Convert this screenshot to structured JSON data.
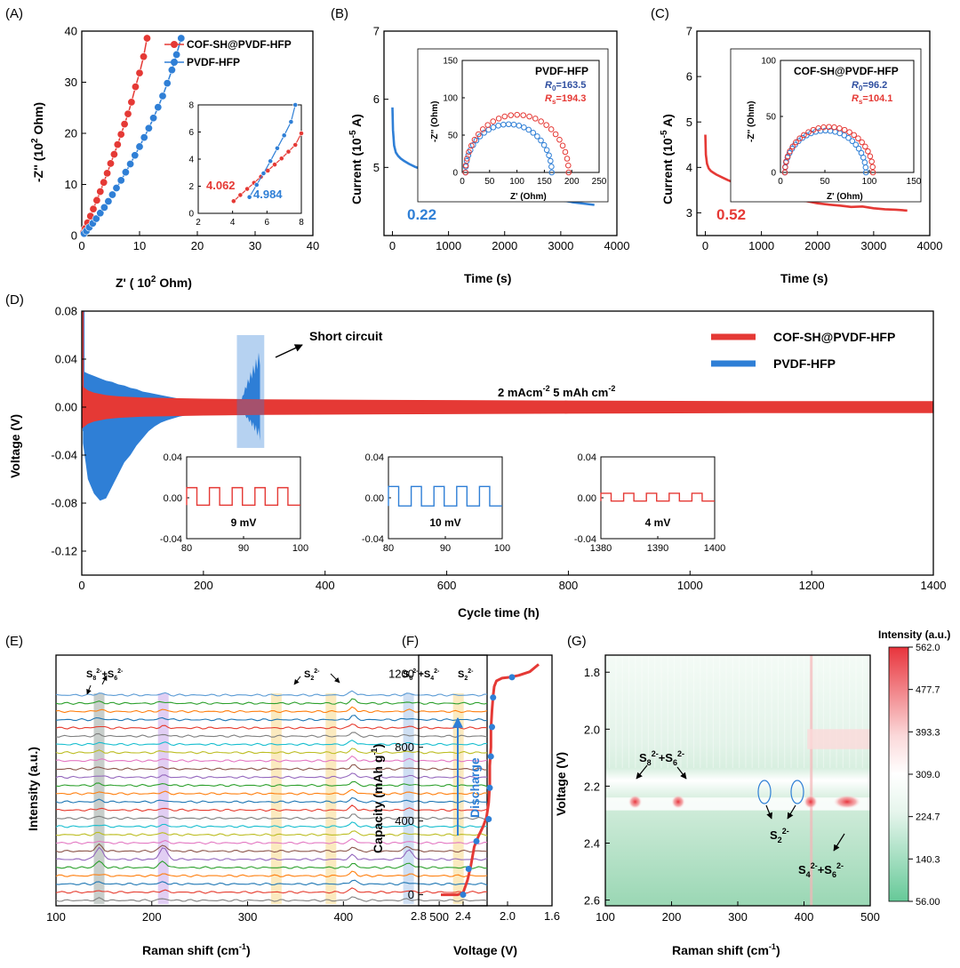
{
  "colors": {
    "red": "#e53935",
    "blue": "#2f7fd6",
    "hm_low": "#66c998",
    "hm_mid": "#ffffff",
    "hm_high": "#e8343c"
  },
  "chart_data": [
    {
      "id": "A",
      "panel_label": "(A)",
      "type": "scatter",
      "title": "",
      "xlabel_main": "Z' ( 10",
      "xlabel_sup": "2",
      "xlabel_end": " Ohm)",
      "ylabel_main": "-Z'' (10",
      "ylabel_sup": "2",
      "ylabel_end": " Ohm)",
      "xlim": [
        0,
        40
      ],
      "ylim": [
        0,
        40
      ],
      "xticks": [
        0,
        10,
        20,
        30,
        40
      ],
      "yticks": [
        0,
        10,
        20,
        30,
        40
      ],
      "legend": [
        "COF-SH@PVDF-HFP",
        "PVDF-HFP"
      ],
      "series": [
        {
          "name": "COF-SH@PVDF-HFP",
          "color": "red",
          "x": [
            0.3,
            0.6,
            1.0,
            1.5,
            2.0,
            2.6,
            3.2,
            3.8,
            4.4,
            5.0,
            5.6,
            6.2,
            6.8,
            7.4,
            8.0,
            8.6,
            9.3,
            10.0,
            10.7,
            11.3
          ],
          "y": [
            0.6,
            1.4,
            2.5,
            3.8,
            5.2,
            6.9,
            8.6,
            10.4,
            12.2,
            14.1,
            15.9,
            17.8,
            19.8,
            21.8,
            23.8,
            26.1,
            29.1,
            31.8,
            35.0,
            38.6
          ]
        },
        {
          "name": "PVDF-HFP",
          "color": "blue",
          "x": [
            0.4,
            0.8,
            1.3,
            1.9,
            2.5,
            3.2,
            3.9,
            4.6,
            5.3,
            6.0,
            6.8,
            7.6,
            8.4,
            9.2,
            10.0,
            10.8,
            11.6,
            12.4,
            13.2,
            14.0,
            14.8,
            15.6,
            16.4,
            17.2
          ],
          "y": [
            0.4,
            0.9,
            1.6,
            2.4,
            3.3,
            4.4,
            5.5,
            6.7,
            8.0,
            9.3,
            10.8,
            12.4,
            14.0,
            15.7,
            17.4,
            19.2,
            21.0,
            23.0,
            25.1,
            27.3,
            29.8,
            32.4,
            35.4,
            38.6
          ]
        }
      ],
      "inset": {
        "xlim": [
          2,
          8
        ],
        "ylim": [
          0,
          8
        ],
        "xticks": [
          2,
          4,
          6,
          8
        ],
        "yticks": [
          0,
          2,
          4,
          6,
          8
        ],
        "annotations": [
          "4.062",
          "4.984"
        ],
        "series": [
          {
            "name": "COF-SH@PVDF-HFP",
            "color": "red",
            "x": [
              4.06,
              4.45,
              4.85,
              5.25,
              5.65,
              6.05,
              6.45,
              6.85,
              7.25,
              7.65,
              8.0
            ],
            "y": [
              0.9,
              1.35,
              1.8,
              2.25,
              2.7,
              3.15,
              3.6,
              4.05,
              4.55,
              5.05,
              5.9
            ]
          },
          {
            "name": "PVDF-HFP",
            "color": "blue",
            "x": [
              4.98,
              5.4,
              5.8,
              6.2,
              6.6,
              7.0,
              7.4,
              7.65
            ],
            "y": [
              1.2,
              2.1,
              2.95,
              3.85,
              4.8,
              5.75,
              6.75,
              8.0
            ]
          }
        ]
      }
    },
    {
      "id": "B",
      "panel_label": "(B)",
      "type": "line",
      "xlabel": "Time (s)",
      "ylabel_main": "Current  (10",
      "ylabel_sup": "-5",
      "ylabel_end": " A)",
      "xlim": [
        -150,
        4000
      ],
      "ylim": [
        4,
        7
      ],
      "xticks": [
        0,
        1000,
        2000,
        3000,
        4000
      ],
      "yticks": [
        5,
        6,
        7
      ],
      "annotation": "0.22",
      "series": [
        {
          "name": "PVDF-HFP",
          "color": "blue",
          "x": [
            0,
            10,
            30,
            60,
            100,
            150,
            200,
            300,
            400,
            600,
            800,
            1000,
            1200,
            1400,
            1600,
            1800,
            2000,
            2200,
            2400,
            2600,
            2800,
            3000,
            3200,
            3400,
            3600
          ],
          "y": [
            5.88,
            5.55,
            5.32,
            5.22,
            5.17,
            5.13,
            5.1,
            5.05,
            5.01,
            4.95,
            4.9,
            4.85,
            4.81,
            4.77,
            4.73,
            4.7,
            4.67,
            4.63,
            4.6,
            4.59,
            4.55,
            4.52,
            4.49,
            4.47,
            4.45
          ]
        }
      ],
      "inset": {
        "title": "PVDF-HFP",
        "xlabel": "Z' (Ohm)",
        "ylabel": "-Z'' (Ohm)",
        "xlim": [
          0,
          250
        ],
        "ylim": [
          0,
          150
        ],
        "xticks": [
          0,
          50,
          100,
          150,
          200,
          250
        ],
        "yticks": [
          0,
          50,
          100,
          150
        ],
        "r0_label": "R",
        "r0_sub": "0",
        "r0_value": "=163.5",
        "rs_label": "R",
        "rs_sub": "s",
        "rs_value": "=194.3",
        "arcs": [
          {
            "color": "blue",
            "x_start": 6,
            "x_end": 163.5
          },
          {
            "color": "red",
            "x_start": 6,
            "x_end": 194.3
          }
        ]
      }
    },
    {
      "id": "C",
      "panel_label": "(C)",
      "type": "line",
      "xlabel": "Time (s)",
      "ylabel_main": "Current  (10",
      "ylabel_sup": "-5",
      "ylabel_end": " A)",
      "xlim": [
        -150,
        4000
      ],
      "ylim": [
        2.5,
        7
      ],
      "xticks": [
        0,
        1000,
        2000,
        3000,
        4000
      ],
      "yticks": [
        3,
        4,
        5,
        6,
        7
      ],
      "annotation": "0.52",
      "series": [
        {
          "name": "COF-SH@PVDF-HFP",
          "color": "red",
          "x": [
            0,
            10,
            30,
            60,
            100,
            150,
            200,
            300,
            400,
            600,
            800,
            1000,
            1200,
            1400,
            1600,
            1800,
            2000,
            2200,
            2400,
            2600,
            2800,
            3000,
            3200,
            3400,
            3600
          ],
          "y": [
            4.72,
            4.28,
            4.08,
            3.98,
            3.92,
            3.88,
            3.84,
            3.78,
            3.72,
            3.62,
            3.54,
            3.47,
            3.4,
            3.35,
            3.3,
            3.26,
            3.21,
            3.18,
            3.16,
            3.13,
            3.14,
            3.1,
            3.08,
            3.07,
            3.05
          ]
        }
      ],
      "inset": {
        "title": "COF-SH@PVDF-HFP",
        "xlabel": "Z' (Ohm)",
        "ylabel": "-Z'' (Ohm)",
        "xlim": [
          0,
          150
        ],
        "ylim": [
          0,
          100
        ],
        "xticks": [
          0,
          50,
          100,
          150
        ],
        "yticks": [
          0,
          50,
          100
        ],
        "r0_label": "R",
        "r0_sub": "0",
        "r0_value": "=96.2",
        "rs_label": "R",
        "rs_sub": "s",
        "rs_value": "=104.1",
        "arcs": [
          {
            "color": "blue",
            "x_start": 5,
            "x_end": 96.2
          },
          {
            "color": "red",
            "x_start": 5,
            "x_end": 104.1
          }
        ]
      }
    },
    {
      "id": "D",
      "panel_label": "(D)",
      "type": "line",
      "xlabel": "Cycle time (h)",
      "ylabel": "Voltage (V)",
      "xlim": [
        0,
        1400
      ],
      "ylim": [
        -0.14,
        0.08
      ],
      "xticks": [
        0,
        200,
        400,
        600,
        800,
        1000,
        1200,
        1400
      ],
      "yticks": [
        0.08,
        0.04,
        0.0,
        -0.04,
        -0.08,
        -0.12
      ],
      "ytick_labels": [
        "0.08",
        "0.04",
        "0.00",
        "-0.04",
        "-0.08",
        "-0.12"
      ],
      "legend": [
        "COF-SH@PVDF-HFP",
        "PVDF-HFP"
      ],
      "condition_a": "2 mAcm",
      "condition_a_sup": "-2",
      "condition_b": "   5 mAh cm",
      "condition_b_sup": "-2",
      "annotation": "Short circuit",
      "pvdf_envelope": {
        "t": [
          2,
          10,
          20,
          30,
          40,
          50,
          60,
          70,
          80,
          90,
          100,
          110,
          120,
          130,
          140,
          160,
          180,
          200
        ],
        "upper": [
          0.03,
          0.028,
          0.026,
          0.024,
          0.022,
          0.021,
          0.019,
          0.018,
          0.016,
          0.015,
          0.013,
          0.012,
          0.011,
          0.01,
          0.009,
          0.007,
          0.006,
          0.005
        ],
        "lower": [
          -0.03,
          -0.06,
          -0.072,
          -0.078,
          -0.076,
          -0.066,
          -0.056,
          -0.046,
          -0.04,
          -0.032,
          -0.026,
          -0.02,
          -0.016,
          -0.013,
          -0.011,
          -0.008,
          -0.006,
          -0.005
        ]
      },
      "short_circuit": {
        "t_start": 262,
        "t_end": 293,
        "upper": 0.048,
        "lower": -0.028
      },
      "cof_envelope": {
        "t": [
          0,
          10,
          20,
          40,
          60,
          100,
          150,
          200,
          300,
          500,
          800,
          1100,
          1400
        ],
        "amp": [
          0.018,
          0.014,
          0.012,
          0.01,
          0.009,
          0.008,
          0.0075,
          0.007,
          0.0065,
          0.006,
          0.0055,
          0.005,
          0.005
        ]
      },
      "insets": [
        {
          "color": "red",
          "label": "9 mV",
          "xlim": [
            80,
            100
          ],
          "xticks": [
            80,
            90,
            100
          ],
          "ylim": [
            -0.04,
            0.04
          ],
          "yticks": [
            "0.04",
            "0.00",
            "-0.04"
          ],
          "amplitude": 0.0045
        },
        {
          "color": "blue",
          "label": "10 mV",
          "xlim": [
            80,
            100
          ],
          "xticks": [
            80,
            90,
            100
          ],
          "ylim": [
            -0.04,
            0.04
          ],
          "yticks": [
            "0.04",
            "0.00",
            "-0.04"
          ],
          "amplitude": 0.005
        },
        {
          "color": "red",
          "label": "4 mV",
          "xlim": [
            1380,
            1400
          ],
          "xticks": [
            1380,
            1390,
            1400
          ],
          "ylim": [
            -0.04,
            0.04
          ],
          "yticks": [
            "0.04",
            "0.00",
            "-0.04"
          ],
          "amplitude": 0.002
        }
      ]
    },
    {
      "id": "E",
      "panel_label": "(E)",
      "type": "line",
      "xlabel": "Raman shift (cm",
      "xlabel_sup": "-1",
      "xlabel_end": ")",
      "ylabel": "Intensity (a.u.)",
      "xlim": [
        100,
        550
      ],
      "xticks": [
        100,
        200,
        300,
        400,
        500
      ],
      "highlight_bands": [
        145,
        212,
        330,
        387,
        468,
        520
      ],
      "peak_labels": [
        {
          "text": "S",
          "sub": "8",
          "sup": "2-",
          "text2": "+S",
          "sub2": "6",
          "sup2": "2-"
        },
        {
          "text": "S",
          "sub": "2",
          "sup": "2-"
        },
        {
          "text": "S",
          "sub": "6",
          "sup": "2-",
          "text2": "+S",
          "sub2": "4",
          "sup2": "2-"
        },
        {
          "text": "S",
          "sub": "2",
          "sup": "2-"
        }
      ],
      "n_spectra": 26,
      "series_colors": [
        "#7f7f7f",
        "#e63b2e",
        "#1f77b4",
        "#ff7f0e",
        "#2ca02c",
        "#9467bd",
        "#8c564b",
        "#e377c2",
        "#bcbd22",
        "#17becf",
        "#7f7f7f",
        "#e63b2e",
        "#1f77b4",
        "#ff7f0e",
        "#2ca02c",
        "#9467bd",
        "#8c564b",
        "#e377c2",
        "#bcbd22",
        "#17becf",
        "#7f7f7f",
        "#e63b2e",
        "#1f77b4",
        "#ff7f0e",
        "#2ca02c",
        "#5b9bd5"
      ]
    },
    {
      "id": "F",
      "panel_label": "(F)",
      "type": "line",
      "xlabel": "Voltage (V)",
      "ylabel_main": "Capacity (mAh g",
      "ylabel_sup": "-1",
      "ylabel_end": ")",
      "xlim": [
        2.8,
        1.6
      ],
      "ylim": [
        -60,
        1300
      ],
      "xticks": [
        2.8,
        2.4,
        2.0,
        1.6
      ],
      "xtick_labels": [
        "2.8",
        "2.4",
        "2.0",
        "1.6"
      ],
      "yticks": [
        0,
        400,
        800,
        1200
      ],
      "annotation": "Discharge",
      "series": [
        {
          "name": "discharge",
          "color": "red",
          "x": [
            2.6,
            2.45,
            2.4,
            2.36,
            2.33,
            2.3,
            2.26,
            2.22,
            2.19,
            2.17,
            2.16,
            2.16,
            2.15,
            2.15,
            2.14,
            2.13,
            2.12,
            2.1,
            2.05,
            1.98,
            1.9,
            1.8,
            1.72
          ],
          "y": [
            0,
            0,
            10,
            80,
            160,
            260,
            320,
            370,
            420,
            500,
            600,
            700,
            800,
            900,
            1000,
            1080,
            1130,
            1160,
            1175,
            1180,
            1190,
            1210,
            1250
          ]
        },
        {
          "name": "markers",
          "color": "blue",
          "x": [
            2.4,
            2.35,
            2.28,
            2.17,
            2.16,
            2.15,
            2.14,
            2.13,
            1.96
          ],
          "y": [
            0,
            140,
            290,
            410,
            580,
            750,
            910,
            1070,
            1180
          ]
        }
      ]
    },
    {
      "id": "G",
      "panel_label": "(G)",
      "type": "heatmap",
      "xlabel": "Raman shift (cm",
      "xlabel_sup": "-1",
      "xlabel_end": ")",
      "ylabel": "Voltage (V)",
      "xlim": [
        100,
        500
      ],
      "ylim": [
        1.74,
        2.62
      ],
      "xticks": [
        100,
        200,
        300,
        400,
        500
      ],
      "yticks": [
        "1.8",
        "2.0",
        "2.2",
        "2.4",
        "2.6"
      ],
      "colorbar_title": "Intensity (a.u.)",
      "colorbar_ticks": [
        "562.0",
        "477.7",
        "393.3",
        "309.0",
        "224.7",
        "140.3",
        "56.00"
      ],
      "labels": [
        {
          "text": "S",
          "sub": "8",
          "sup": "2-",
          "text2": "+S",
          "sub2": "6",
          "sup2": "2-"
        },
        {
          "text": "S",
          "sub": "2",
          "sup": "2-"
        },
        {
          "text": "S",
          "sub": "4",
          "sup": "2-",
          "text2": "+S",
          "sub2": "6",
          "sup2": "2-"
        }
      ],
      "hot_spots": [
        {
          "x": 145,
          "v": 2.255
        },
        {
          "x": 210,
          "v": 2.255
        },
        {
          "x": 410,
          "v": 2.255
        },
        {
          "x": 465,
          "v": 2.255
        }
      ]
    }
  ]
}
